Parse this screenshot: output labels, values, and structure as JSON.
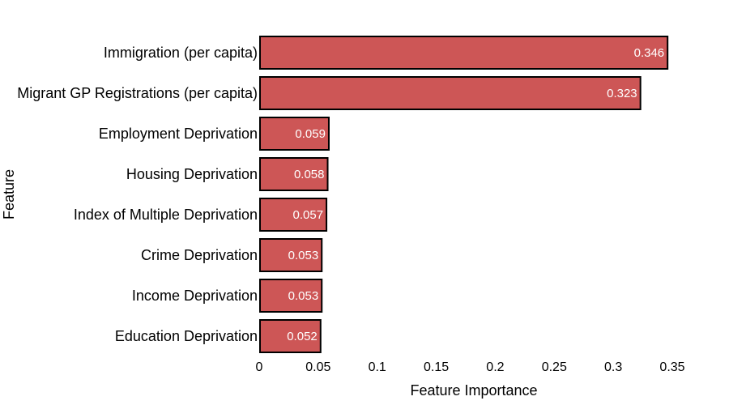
{
  "chart_data": {
    "type": "bar",
    "orientation": "horizontal",
    "xlabel": "Feature Importance",
    "ylabel": "Feature",
    "categories": [
      "Immigration (per capita)",
      "Migrant GP Registrations (per capita)",
      "Employment Deprivation",
      "Housing Deprivation",
      "Index of Multiple Deprivation",
      "Crime Deprivation",
      "Income Deprivation",
      "Education Deprivation"
    ],
    "values": [
      0.346,
      0.323,
      0.059,
      0.058,
      0.057,
      0.053,
      0.053,
      0.052
    ],
    "value_labels": [
      "0.346",
      "0.323",
      "0.059",
      "0.058",
      "0.057",
      "0.053",
      "0.053",
      "0.052"
    ],
    "xlim": [
      0,
      0.35
    ],
    "xticks": [
      0,
      0.05,
      0.1,
      0.15,
      0.2,
      0.25,
      0.3,
      0.35
    ],
    "xtick_labels": [
      "0",
      "0.05",
      "0.1",
      "0.15",
      "0.2",
      "0.25",
      "0.3",
      "0.35"
    ],
    "grid": false,
    "bar_color": "#cd5656",
    "bar_edge_color": "#000000"
  }
}
